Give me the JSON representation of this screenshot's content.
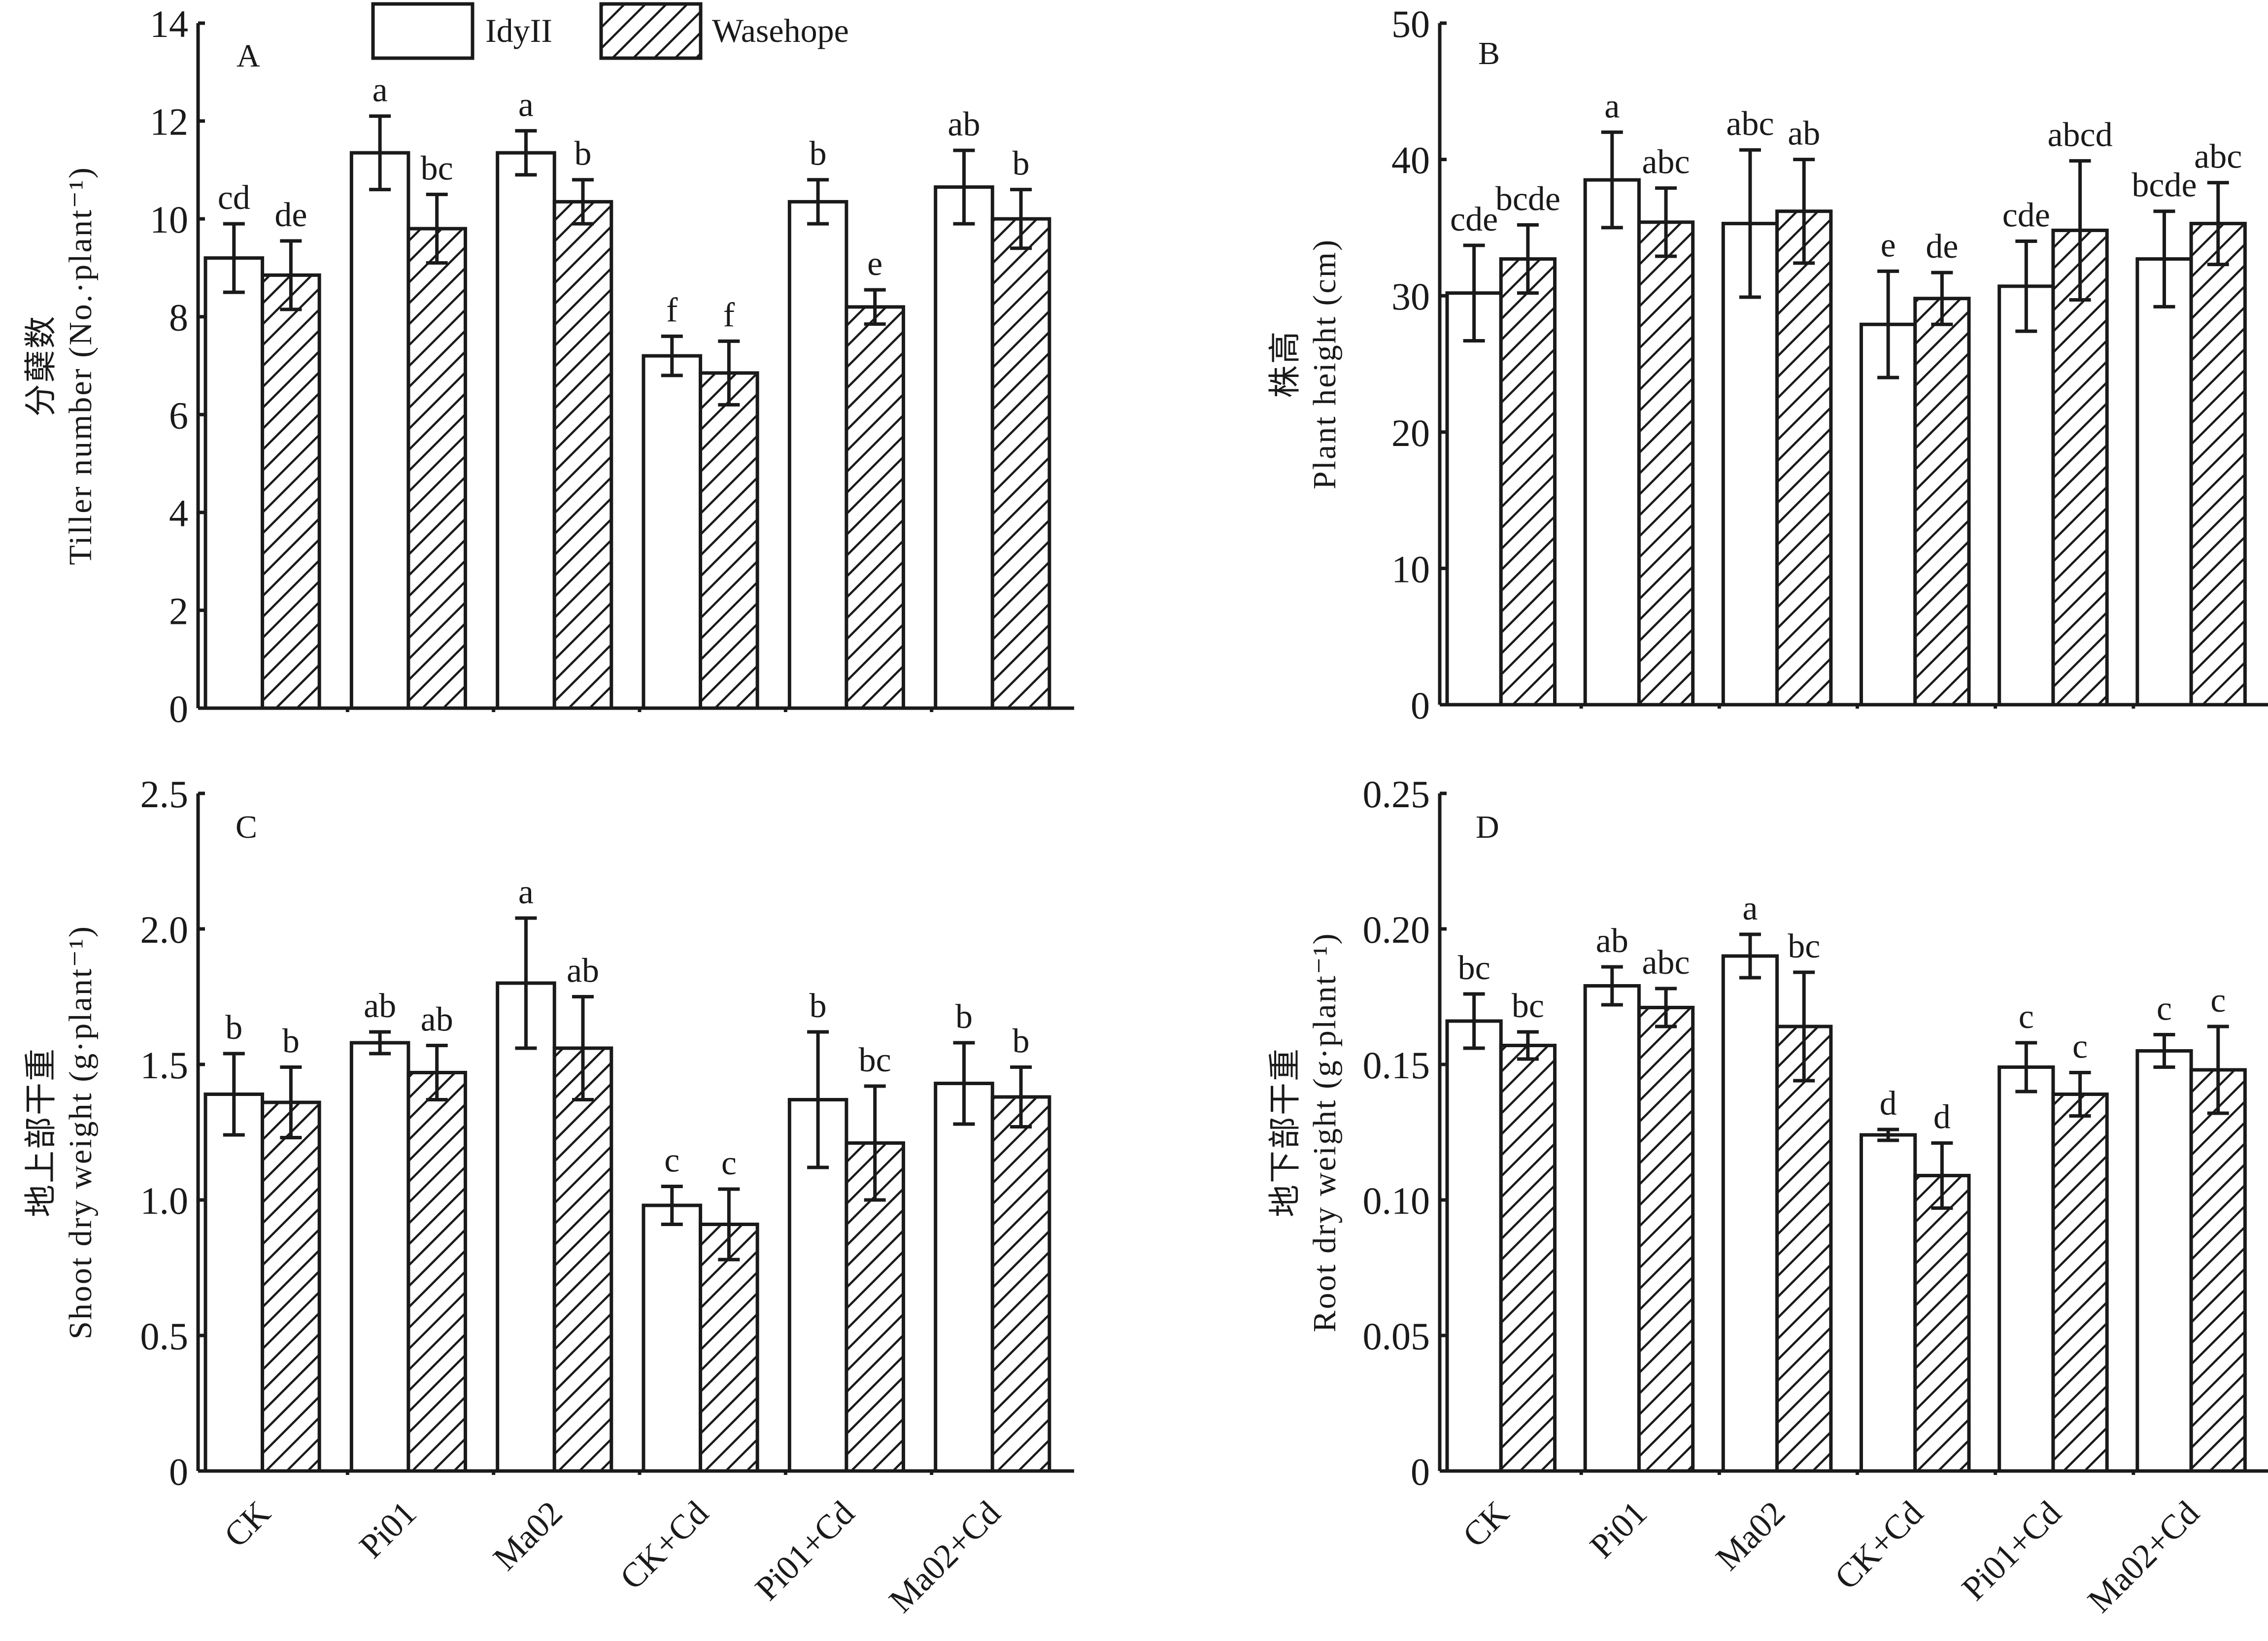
{
  "legend": {
    "series": [
      {
        "name": "IdyII",
        "fill": "white"
      },
      {
        "name": "Wasehope",
        "fill": "hatch"
      }
    ]
  },
  "colors": {
    "ink": "#1a1a1a",
    "background": "#ffffff"
  },
  "chart_data": [
    {
      "type": "bar",
      "panel": "A",
      "ylabel_cn": "分蘖数",
      "ylabel": "Tiller number (No.·plant⁻¹)",
      "ylim": [
        0,
        14
      ],
      "yticks": [
        0,
        2,
        4,
        6,
        8,
        10,
        12,
        14
      ],
      "ytick_labels": [
        "0",
        "2",
        "4",
        "6",
        "8",
        "10",
        "12",
        "14"
      ],
      "categories": [
        "CK",
        "Pi01",
        "Ma02",
        "CK+Cd",
        "Pi01+Cd",
        "Ma02+Cd"
      ],
      "show_xticklabels": false,
      "series": [
        {
          "name": "IdyII",
          "values": [
            9.2,
            11.35,
            11.35,
            7.2,
            10.35,
            10.65
          ],
          "errors": [
            0.7,
            0.75,
            0.45,
            0.4,
            0.45,
            0.75
          ],
          "letters": [
            "cd",
            "a",
            "a",
            "f",
            "b",
            "ab"
          ]
        },
        {
          "name": "Wasehope",
          "values": [
            8.85,
            9.8,
            10.35,
            6.85,
            8.2,
            10.0
          ],
          "errors": [
            0.7,
            0.7,
            0.45,
            0.65,
            0.35,
            0.6
          ],
          "letters": [
            "de",
            "bc",
            "b",
            "f",
            "e",
            "b"
          ]
        }
      ]
    },
    {
      "type": "bar",
      "panel": "B",
      "ylabel_cn": "株高",
      "ylabel": "Plant height (cm)",
      "ylim": [
        0,
        50
      ],
      "yticks": [
        0,
        10,
        20,
        30,
        40,
        50
      ],
      "ytick_labels": [
        "0",
        "10",
        "20",
        "30",
        "40",
        "50"
      ],
      "categories": [
        "CK",
        "Pi01",
        "Ma02",
        "CK+Cd",
        "Pi01+Cd",
        "Ma02+Cd"
      ],
      "show_xticklabels": false,
      "series": [
        {
          "name": "IdyII",
          "values": [
            30.2,
            38.5,
            35.3,
            27.9,
            30.7,
            32.7
          ],
          "errors": [
            3.5,
            3.5,
            5.4,
            3.9,
            3.3,
            3.5
          ],
          "letters": [
            "cde",
            "a",
            "abc",
            "e",
            "cde",
            "bcde"
          ]
        },
        {
          "name": "Wasehope",
          "values": [
            32.7,
            35.4,
            36.2,
            29.8,
            34.8,
            35.3
          ],
          "errors": [
            2.5,
            2.5,
            3.8,
            1.9,
            5.1,
            3.0
          ],
          "letters": [
            "bcde",
            "abc",
            "ab",
            "de",
            "abcd",
            "abc"
          ]
        }
      ]
    },
    {
      "type": "bar",
      "panel": "C",
      "ylabel_cn": "地上部干重",
      "ylabel": "Shoot dry weight (g·plant⁻¹)",
      "ylim": [
        0,
        2.5
      ],
      "yticks": [
        0,
        0.5,
        1.0,
        1.5,
        2.0,
        2.5
      ],
      "ytick_labels": [
        "0",
        "0.5",
        "1.0",
        "1.5",
        "2.0",
        "2.5"
      ],
      "categories": [
        "CK",
        "Pi01",
        "Ma02",
        "CK+Cd",
        "Pi01+Cd",
        "Ma02+Cd"
      ],
      "show_xticklabels": true,
      "series": [
        {
          "name": "IdyII",
          "values": [
            1.39,
            1.58,
            1.8,
            0.98,
            1.37,
            1.43
          ],
          "errors": [
            0.15,
            0.04,
            0.24,
            0.07,
            0.25,
            0.15
          ],
          "letters": [
            "b",
            "ab",
            "a",
            "c",
            "b",
            "b"
          ]
        },
        {
          "name": "Wasehope",
          "values": [
            1.36,
            1.47,
            1.56,
            0.91,
            1.21,
            1.38
          ],
          "errors": [
            0.13,
            0.1,
            0.19,
            0.13,
            0.21,
            0.11
          ],
          "letters": [
            "b",
            "ab",
            "ab",
            "c",
            "bc",
            "b"
          ]
        }
      ]
    },
    {
      "type": "bar",
      "panel": "D",
      "ylabel_cn": "地下部干重",
      "ylabel": "Root dry weight (g·plant⁻¹)",
      "ylim": [
        0,
        0.25
      ],
      "yticks": [
        0,
        0.05,
        0.1,
        0.15,
        0.2,
        0.25
      ],
      "ytick_labels": [
        "0",
        "0.05",
        "0.10",
        "0.15",
        "0.20",
        "0.25"
      ],
      "categories": [
        "CK",
        "Pi01",
        "Ma02",
        "CK+Cd",
        "Pi01+Cd",
        "Ma02+Cd"
      ],
      "show_xticklabels": true,
      "series": [
        {
          "name": "IdyII",
          "values": [
            0.166,
            0.179,
            0.19,
            0.124,
            0.149,
            0.155
          ],
          "errors": [
            0.01,
            0.007,
            0.008,
            0.002,
            0.009,
            0.006
          ],
          "letters": [
            "bc",
            "ab",
            "a",
            "d",
            "c",
            "c"
          ]
        },
        {
          "name": "Wasehope",
          "values": [
            0.157,
            0.171,
            0.164,
            0.109,
            0.139,
            0.148
          ],
          "errors": [
            0.005,
            0.007,
            0.02,
            0.012,
            0.008,
            0.016
          ],
          "letters": [
            "bc",
            "abc",
            "bc",
            "d",
            "c",
            "c"
          ]
        }
      ]
    }
  ]
}
